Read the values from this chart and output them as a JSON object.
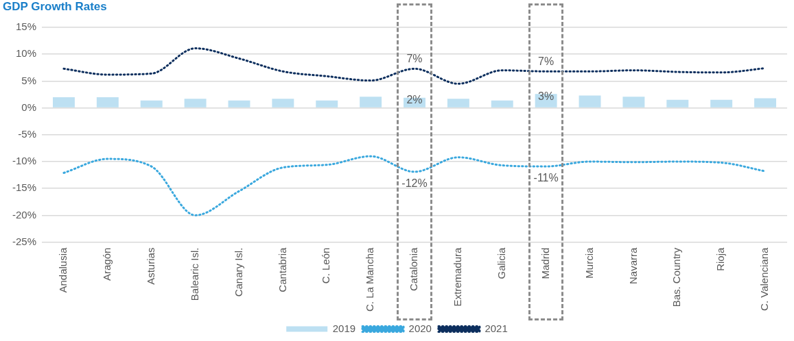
{
  "chart_data": {
    "type": "bar",
    "title": "GDP Growth Rates",
    "categories": [
      "Andalusia",
      "Aragón",
      "Asturias",
      "Balearic Isl.",
      "Canary Isl.",
      "Cantabria",
      "C. León",
      "C. La Mancha",
      "Catalonia",
      "Extremadura",
      "Galicia",
      "Madrid",
      "Murcia",
      "Navarra",
      "Bas. Country",
      "Rioja",
      "C. Valenciana"
    ],
    "series": [
      {
        "name": "2019",
        "color": "#bde0f2",
        "values": [
          2.0,
          2.0,
          1.4,
          1.7,
          1.4,
          1.7,
          1.4,
          2.1,
          1.9,
          1.7,
          1.4,
          2.6,
          2.3,
          2.1,
          1.5,
          1.5,
          1.8
        ],
        "value_labels": [
          null,
          null,
          null,
          null,
          null,
          null,
          null,
          null,
          "2%",
          null,
          null,
          "3%",
          null,
          null,
          null,
          null,
          null
        ]
      },
      {
        "name": "2020",
        "type": "line",
        "color": "#3aa8de",
        "values": [
          -12.1,
          -9.5,
          -10.9,
          -20.0,
          -15.5,
          -11.1,
          -10.6,
          -9.0,
          -11.9,
          -9.2,
          -10.7,
          -10.9,
          -10.0,
          -10.1,
          -10.0,
          -10.2,
          -11.8
        ],
        "value_labels": [
          null,
          null,
          null,
          null,
          null,
          null,
          null,
          null,
          "-12%",
          null,
          null,
          "-11%",
          null,
          null,
          null,
          null,
          null
        ]
      },
      {
        "name": "2021",
        "type": "line",
        "color": "#0d2f5e",
        "values": [
          7.3,
          6.2,
          6.4,
          11.1,
          9.2,
          6.8,
          5.9,
          5.1,
          7.3,
          4.5,
          7.0,
          6.8,
          6.8,
          7.0,
          6.7,
          6.6,
          7.4
        ],
        "value_labels": [
          null,
          null,
          null,
          null,
          null,
          null,
          null,
          null,
          "7%",
          null,
          null,
          "7%",
          null,
          null,
          null,
          null,
          null
        ]
      }
    ],
    "ylim": [
      -25,
      15
    ],
    "yticks": [
      {
        "value": -25,
        "label": "-25%"
      },
      {
        "value": -20,
        "label": "-20%"
      },
      {
        "value": -15,
        "label": "-15%"
      },
      {
        "value": -10,
        "label": "-10%"
      },
      {
        "value": -5,
        "label": "-5%"
      },
      {
        "value": 0,
        "label": "0%"
      },
      {
        "value": 5,
        "label": "5%"
      },
      {
        "value": 10,
        "label": "10%"
      },
      {
        "value": 15,
        "label": "15%"
      }
    ],
    "grid": "y",
    "legend": "bottom",
    "marker": "none",
    "line_style": "dotted"
  }
}
